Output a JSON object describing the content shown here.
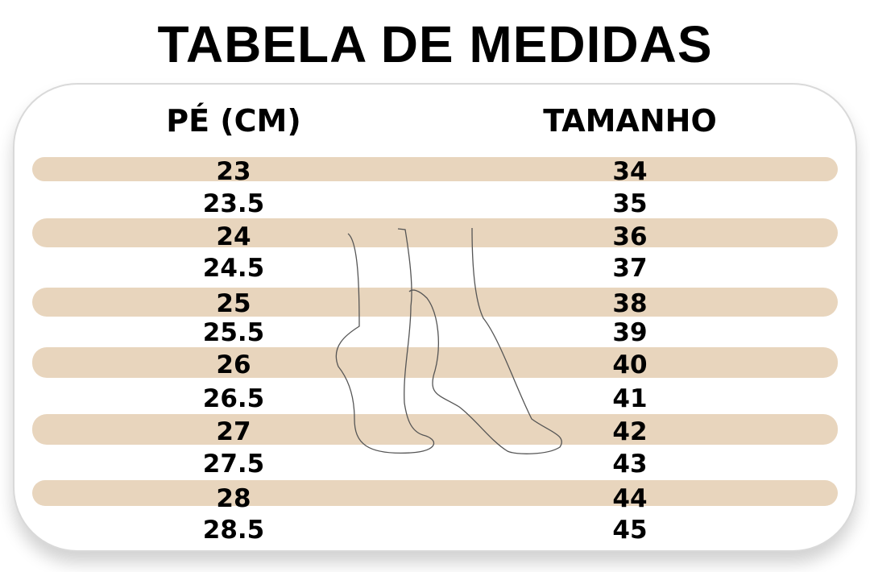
{
  "title": "TABELA DE MEDIDAS",
  "headers": {
    "foot": "PÉ (CM)",
    "size": "TAMANHO"
  },
  "colors": {
    "band": "#e8d5bd",
    "text": "#000000",
    "border": "#d9d9d9"
  },
  "rows": [
    {
      "cm": "23",
      "size": "34"
    },
    {
      "cm": "23.5",
      "size": "35"
    },
    {
      "cm": "24",
      "size": "36"
    },
    {
      "cm": "24.5",
      "size": "37"
    },
    {
      "cm": "25",
      "size": "38"
    },
    {
      "cm": "25.5",
      "size": "39"
    },
    {
      "cm": "26",
      "size": "40"
    },
    {
      "cm": "26.5",
      "size": "41"
    },
    {
      "cm": "27",
      "size": "42"
    },
    {
      "cm": "27.5",
      "size": "43"
    },
    {
      "cm": "28",
      "size": "44"
    },
    {
      "cm": "28.5",
      "size": "45"
    }
  ]
}
